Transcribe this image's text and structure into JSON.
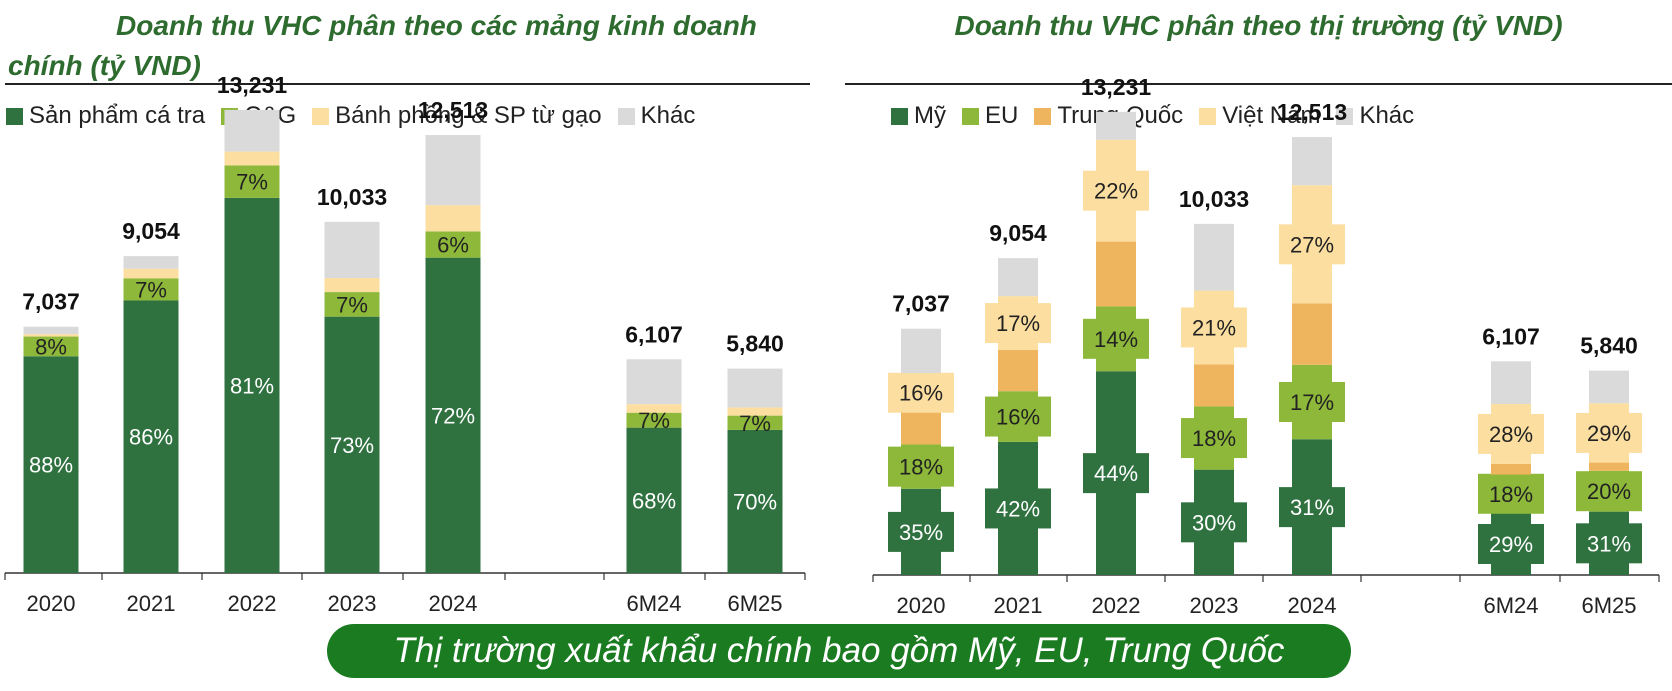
{
  "colors": {
    "ca_tra": "#2f7240",
    "cg": "#8db83a",
    "banh_phong": "#fcdfa0",
    "khac": "#dadada",
    "my": "#2f7240",
    "eu": "#8db83a",
    "trung_quoc": "#efb55e",
    "viet_nam": "#fcdfa0",
    "title_green": "#2e6b2f",
    "banner_green": "#1b7b21"
  },
  "banner": {
    "text": "Thị trường xuất khẩu chính bao gồm Mỹ, EU, Trung Quốc"
  },
  "chart_data": [
    {
      "type": "bar",
      "stacked": true,
      "title": "Doanh thu VHC phân theo các mảng kinh doanh chính (tỷ VND)",
      "categories": [
        "2020",
        "2021",
        "2022",
        "2023",
        "2024",
        "6M24",
        "6M25"
      ],
      "totals": [
        7037,
        9054,
        13231,
        10033,
        12513,
        6107,
        5840
      ],
      "total_labels": [
        "7,037",
        "9,054",
        "13,231",
        "10,033",
        "12,513",
        "6,107",
        "5,840"
      ],
      "ylim": [
        0,
        15000
      ],
      "legend_position": "top-left",
      "series": [
        {
          "name": "Sản phẩm cá tra",
          "color_key": "ca_tra",
          "share": [
            88,
            86,
            81,
            73,
            72,
            68,
            70
          ],
          "labels": [
            "88%",
            "86%",
            "81%",
            "73%",
            "72%",
            "68%",
            "70%"
          ]
        },
        {
          "name": "C&G",
          "color_key": "cg",
          "share": [
            8,
            7,
            7,
            7,
            6,
            7,
            7
          ],
          "labels": [
            "8%",
            "7%",
            "7%",
            "7%",
            "6%",
            "7%",
            "7%"
          ]
        },
        {
          "name": "Bánh phồng & SP từ gạo",
          "color_key": "banh_phong",
          "share": [
            1,
            3,
            3,
            4,
            6,
            4,
            4
          ],
          "labels": [
            "",
            "",
            "",
            "",
            "",
            "",
            ""
          ]
        },
        {
          "name": "Khác",
          "color_key": "khac",
          "share": [
            3,
            4,
            9,
            16,
            16,
            21,
            19
          ],
          "labels": [
            "",
            "",
            "",
            "",
            "",
            "",
            ""
          ]
        }
      ]
    },
    {
      "type": "bar",
      "stacked": true,
      "title": "Doanh thu VHC phân theo thị trường (tỷ VND)",
      "categories": [
        "2020",
        "2021",
        "2022",
        "2023",
        "2024",
        "6M24",
        "6M25"
      ],
      "totals": [
        7037,
        9054,
        13231,
        10033,
        12513,
        6107,
        5840
      ],
      "total_labels": [
        "7,037",
        "9,054",
        "13,231",
        "10,033",
        "12,513",
        "6,107",
        "5,840"
      ],
      "ylim": [
        0,
        15000
      ],
      "legend_position": "top-left",
      "series": [
        {
          "name": "Mỹ",
          "color_key": "my",
          "share": [
            35,
            42,
            44,
            30,
            31,
            29,
            31
          ],
          "labels": [
            "35%",
            "42%",
            "44%",
            "30%",
            "31%",
            "29%",
            "31%"
          ]
        },
        {
          "name": "EU",
          "color_key": "eu",
          "share": [
            18,
            16,
            14,
            18,
            17,
            18,
            20
          ],
          "labels": [
            "18%",
            "16%",
            "14%",
            "18%",
            "17%",
            "18%",
            "20%"
          ]
        },
        {
          "name": "Trung Quốc",
          "color_key": "trung_quoc",
          "share": [
            13,
            13,
            14,
            12,
            14,
            5,
            4
          ],
          "labels": [
            "",
            "",
            "",
            "",
            "",
            "",
            ""
          ]
        },
        {
          "name": "Việt Nam",
          "color_key": "viet_nam",
          "share": [
            16,
            17,
            22,
            21,
            27,
            28,
            29
          ],
          "labels": [
            "16%",
            "17%",
            "22%",
            "21%",
            "27%",
            "28%",
            "29%"
          ]
        },
        {
          "name": "Khác",
          "color_key": "khac",
          "share": [
            18,
            12,
            6,
            19,
            11,
            20,
            16
          ],
          "labels": [
            "",
            "",
            "",
            "",
            "",
            "",
            ""
          ]
        }
      ]
    }
  ]
}
